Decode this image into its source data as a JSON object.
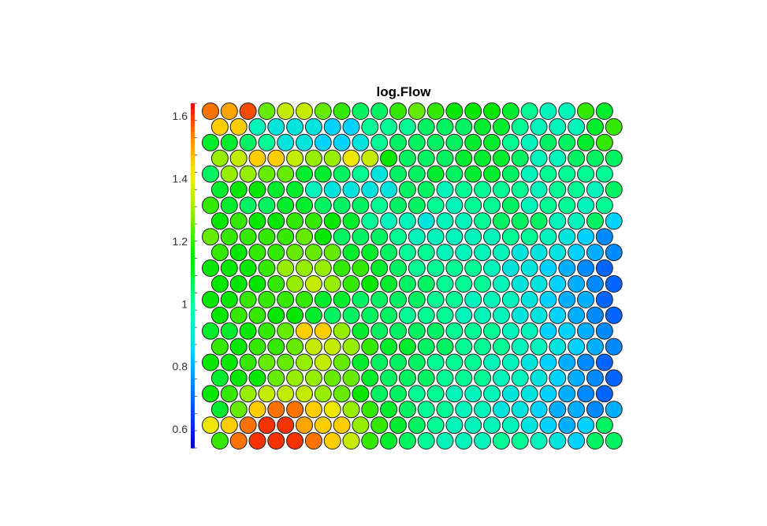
{
  "chart_data": {
    "type": "heatmap",
    "title": "log.Flow",
    "grid": "hexagonal",
    "cols": 22,
    "rows": 22,
    "colorbar": {
      "min": 0.54,
      "max": 1.64,
      "ticks": [
        0.6,
        0.8,
        1,
        1.2,
        1.4,
        1.6
      ],
      "tick_labels": [
        "0.6",
        "0.8",
        "1",
        "1.2",
        "1.4",
        "1.6"
      ]
    },
    "values": [
      [
        1.55,
        1.5,
        1.58,
        1.25,
        1.35,
        1.35,
        1.25,
        1.2,
        1.05,
        1.05,
        1.2,
        1.25,
        1.2,
        1.15,
        1.15,
        1.15,
        1.1,
        1.0,
        0.95,
        0.95,
        1.2,
        1.1
      ],
      [
        1.45,
        1.45,
        0.95,
        0.9,
        0.9,
        0.9,
        0.85,
        0.85,
        1.0,
        1.0,
        1.0,
        1.05,
        1.05,
        1.05,
        1.1,
        1.1,
        1.0,
        0.95,
        0.95,
        0.95,
        1.1,
        1.2
      ],
      [
        1.1,
        1.1,
        1.05,
        1.0,
        0.9,
        0.9,
        0.85,
        0.85,
        0.9,
        1.0,
        1.05,
        1.05,
        1.05,
        1.05,
        1.1,
        1.1,
        1.0,
        0.95,
        1.05,
        1.05,
        1.1,
        1.2
      ],
      [
        1.3,
        1.35,
        1.45,
        1.45,
        1.35,
        1.3,
        1.3,
        1.4,
        1.35,
        1.15,
        1.05,
        1.05,
        1.05,
        1.1,
        1.1,
        1.1,
        1.05,
        0.95,
        0.95,
        1.05,
        1.05,
        1.05
      ],
      [
        1.05,
        1.3,
        1.3,
        1.25,
        1.25,
        1.1,
        1.1,
        1.05,
        1.0,
        0.9,
        1.05,
        1.05,
        1.1,
        1.05,
        1.1,
        1.1,
        1.05,
        0.95,
        1.0,
        1.0,
        1.0,
        1.0
      ],
      [
        1.1,
        1.15,
        1.15,
        1.1,
        1.1,
        0.95,
        0.9,
        0.9,
        0.9,
        0.9,
        1.05,
        1.05,
        0.95,
        1.0,
        1.0,
        1.0,
        1.0,
        0.95,
        1.0,
        1.0,
        0.95,
        1.05
      ],
      [
        1.2,
        1.1,
        1.05,
        1.05,
        1.1,
        1.1,
        1.05,
        1.05,
        1.05,
        1.0,
        1.05,
        1.05,
        1.0,
        0.95,
        1.0,
        1.0,
        1.05,
        0.95,
        1.0,
        1.0,
        0.95,
        1.0
      ],
      [
        1.15,
        1.2,
        1.15,
        1.15,
        1.2,
        1.2,
        1.15,
        1.1,
        1.0,
        0.95,
        0.95,
        0.9,
        0.95,
        0.95,
        1.0,
        1.05,
        1.05,
        1.05,
        0.95,
        0.95,
        1.05,
        0.85
      ],
      [
        1.25,
        1.2,
        1.2,
        1.2,
        1.2,
        1.25,
        1.15,
        1.05,
        1.05,
        1.05,
        1.0,
        0.95,
        0.95,
        0.95,
        0.95,
        0.95,
        1.0,
        1.0,
        0.95,
        0.9,
        0.85,
        0.75
      ],
      [
        1.2,
        1.15,
        1.2,
        1.2,
        1.25,
        1.25,
        1.25,
        1.1,
        1.1,
        1.05,
        1.0,
        1.0,
        0.95,
        0.95,
        0.95,
        0.95,
        0.9,
        0.9,
        0.9,
        0.85,
        0.8,
        0.75
      ],
      [
        1.15,
        1.15,
        1.15,
        1.2,
        1.3,
        1.3,
        1.3,
        1.2,
        1.2,
        1.1,
        1.05,
        1.0,
        1.0,
        1.0,
        1.0,
        0.95,
        0.9,
        0.9,
        0.85,
        0.8,
        0.75,
        0.7
      ],
      [
        1.15,
        1.15,
        1.15,
        1.2,
        1.3,
        1.35,
        1.3,
        1.2,
        1.15,
        1.1,
        1.05,
        1.05,
        1.0,
        1.0,
        1.0,
        0.95,
        0.9,
        0.9,
        0.85,
        0.8,
        0.75,
        0.7
      ],
      [
        1.15,
        1.15,
        1.2,
        1.2,
        1.2,
        1.2,
        1.1,
        1.1,
        1.05,
        1.05,
        1.05,
        1.05,
        1.0,
        1.0,
        0.95,
        0.95,
        0.95,
        0.9,
        0.85,
        0.8,
        0.8,
        0.7
      ],
      [
        1.15,
        1.2,
        1.2,
        1.15,
        1.15,
        1.1,
        1.05,
        1.05,
        1.05,
        1.05,
        1.0,
        1.0,
        1.0,
        0.95,
        0.95,
        0.95,
        0.9,
        0.9,
        0.85,
        0.8,
        0.75,
        0.7
      ],
      [
        1.1,
        1.1,
        1.15,
        1.2,
        1.25,
        1.45,
        1.45,
        1.3,
        1.1,
        1.05,
        1.05,
        1.05,
        1.05,
        1.0,
        1.0,
        1.0,
        0.95,
        0.95,
        0.85,
        0.85,
        0.8,
        0.75
      ],
      [
        1.2,
        1.15,
        1.2,
        1.2,
        1.25,
        1.35,
        1.35,
        1.3,
        1.2,
        1.1,
        1.1,
        1.05,
        1.05,
        1.0,
        1.0,
        1.0,
        0.95,
        0.95,
        0.9,
        0.85,
        0.8,
        0.75
      ],
      [
        1.15,
        1.15,
        1.2,
        1.25,
        1.25,
        1.3,
        1.35,
        1.25,
        1.1,
        1.05,
        1.05,
        1.05,
        1.0,
        1.0,
        1.0,
        0.95,
        0.95,
        0.9,
        0.85,
        0.8,
        0.75,
        0.7
      ],
      [
        1.1,
        1.15,
        1.15,
        1.25,
        1.3,
        1.3,
        1.25,
        1.25,
        1.1,
        1.05,
        1.05,
        1.05,
        1.0,
        1.0,
        1.0,
        0.95,
        0.95,
        0.9,
        0.85,
        0.8,
        0.75,
        0.7
      ],
      [
        1.15,
        1.2,
        1.3,
        1.35,
        1.35,
        1.35,
        1.3,
        1.25,
        1.15,
        1.05,
        1.05,
        1.0,
        1.0,
        0.95,
        0.95,
        0.95,
        0.9,
        0.9,
        0.85,
        0.8,
        0.75,
        0.7
      ],
      [
        1.1,
        1.25,
        1.45,
        1.55,
        1.55,
        1.45,
        1.4,
        1.3,
        1.2,
        1.1,
        1.05,
        1.0,
        1.0,
        0.95,
        0.95,
        0.9,
        0.9,
        0.85,
        0.8,
        0.8,
        0.75,
        0.8
      ],
      [
        1.4,
        1.45,
        1.55,
        1.6,
        1.6,
        1.5,
        1.45,
        1.45,
        1.3,
        1.2,
        1.1,
        1.05,
        1.0,
        0.95,
        0.95,
        0.95,
        0.95,
        0.9,
        0.85,
        0.8,
        0.85,
        1.05
      ],
      [
        1.2,
        1.55,
        1.6,
        1.6,
        1.6,
        1.55,
        1.45,
        1.35,
        1.2,
        1.1,
        1.05,
        1.0,
        0.95,
        0.95,
        0.95,
        1.0,
        1.0,
        0.95,
        0.9,
        0.85,
        1.05,
        1.05
      ]
    ]
  }
}
